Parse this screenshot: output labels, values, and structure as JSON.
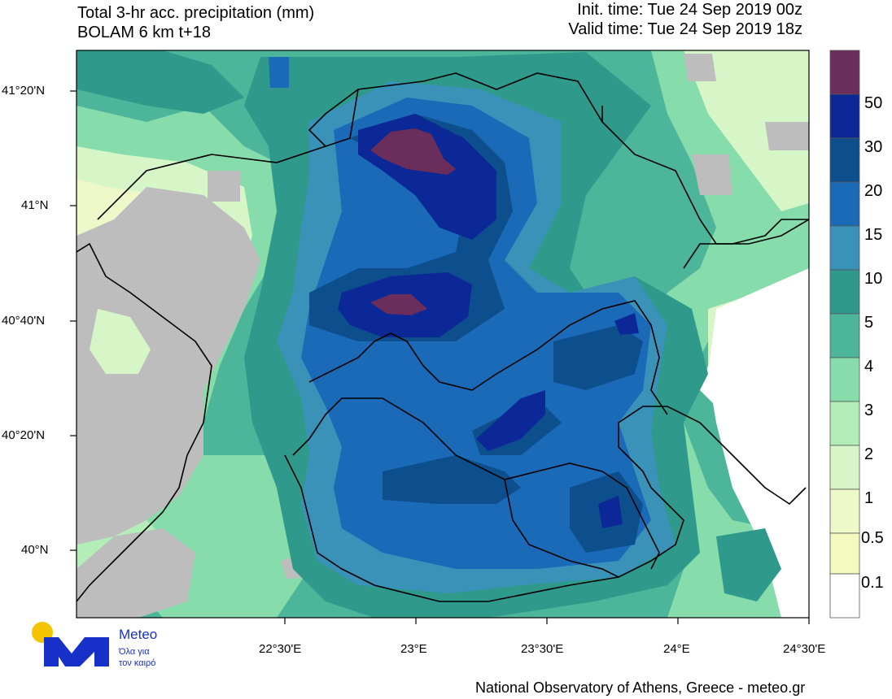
{
  "header": {
    "title_line1": "Total 3-hr acc. precipitation (mm)",
    "title_line2": "BOLAM 6 km t+18",
    "init_time": "Init. time: Tue 24 Sep 2019 00z",
    "valid_time": "Valid time: Tue 24 Sep 2019 18z"
  },
  "map": {
    "lat_ticks": [
      "41°20'N",
      "41°N",
      "40°40'N",
      "40°20'N",
      "40°N"
    ],
    "lon_ticks": [
      "22°30'E",
      "23°E",
      "23°30'E",
      "24°E",
      "24°30'E"
    ]
  },
  "legend": {
    "labels": [
      "50",
      "30",
      "20",
      "15",
      "10",
      "5",
      "4",
      "3",
      "2",
      "1",
      "0.5",
      "0.1"
    ],
    "colors": [
      "#6b2d5c",
      "#0b2896",
      "#0d4e8c",
      "#1a6ab8",
      "#3a92b9",
      "#2f9a8c",
      "#4db59a",
      "#86dcaa",
      "#b3eeb8",
      "#d7f6c8",
      "#eef8c8",
      "#f4f9c0",
      "#ffffff"
    ]
  },
  "logo": {
    "name": "Meteo",
    "tagline_line1": "Όλα για",
    "tagline_line2": "τον καιρό"
  },
  "footer": {
    "credit": "National Observatory of Athens, Greece - meteo.gr"
  }
}
